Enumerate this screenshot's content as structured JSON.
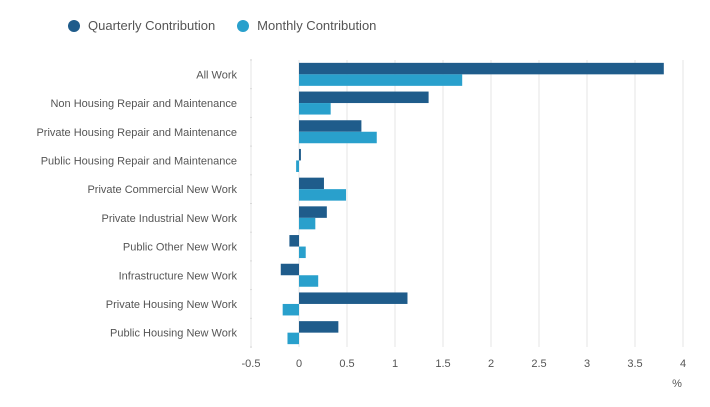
{
  "chart_data": {
    "type": "bar",
    "orientation": "horizontal",
    "categories": [
      "All Work",
      "Non Housing Repair and Maintenance",
      "Private Housing Repair and Maintenance",
      "Public Housing Repair and Maintenance",
      "Private Commercial New Work",
      "Private Industrial New Work",
      "Public Other New Work",
      "Infrastructure New Work",
      "Private Housing New Work",
      "Public Housing New Work"
    ],
    "series": [
      {
        "name": "Quarterly Contribution",
        "color": "#1f5c8b",
        "values": [
          3.8,
          1.35,
          0.65,
          0.02,
          0.26,
          0.29,
          -0.1,
          -0.19,
          1.13,
          0.41
        ]
      },
      {
        "name": "Monthly Contribution",
        "color": "#29a0cc",
        "values": [
          1.7,
          0.33,
          0.81,
          -0.03,
          0.49,
          0.17,
          0.07,
          0.2,
          -0.17,
          -0.12
        ]
      }
    ],
    "xlim": [
      -0.5,
      4
    ],
    "xticks": [
      "-0.5",
      "0",
      "0.5",
      "1",
      "1.5",
      "2",
      "2.5",
      "3",
      "3.5",
      "4"
    ],
    "xtick_values": [
      -0.5,
      0,
      0.5,
      1,
      1.5,
      2,
      2.5,
      3,
      3.5,
      4
    ],
    "unit_label": "%",
    "grid": true,
    "legend_position": "top-left"
  }
}
